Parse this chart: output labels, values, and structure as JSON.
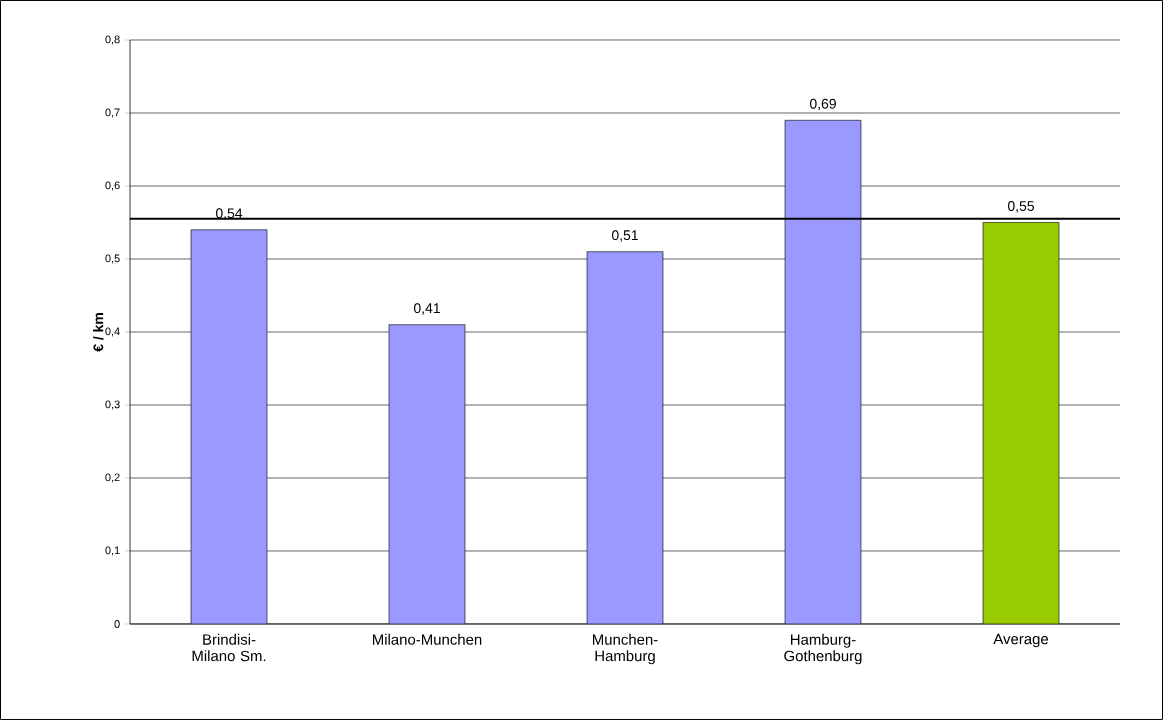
{
  "chart_data": {
    "type": "bar",
    "ylabel": "€ / km",
    "categories": [
      "Brindisi-Milano Sm.",
      "Milano-Munchen",
      "Munchen-Hamburg",
      "Hamburg-Gothenburg",
      "Average"
    ],
    "values": [
      0.54,
      0.41,
      0.51,
      0.69,
      0.55
    ],
    "colors": [
      "#9999ff",
      "#9999ff",
      "#9999ff",
      "#9999ff",
      "#99cc00"
    ],
    "value_labels": [
      "0,54",
      "0,41",
      "0,51",
      "0,69",
      "0,55"
    ],
    "ylim": [
      0,
      0.8
    ],
    "yticks": [
      0,
      {
        "value": 0.1,
        "label": "0,1"
      },
      {
        "value": 0.2,
        "label": "0,2"
      },
      {
        "value": 0.3,
        "label": "0,3"
      },
      {
        "value": 0.4,
        "label": "0,4"
      },
      {
        "value": 0.5,
        "label": "0,5"
      },
      {
        "value": 0.6,
        "label": "0,6"
      },
      {
        "value": 0.7,
        "label": "0,7"
      },
      {
        "value": 0.8,
        "label": "0,8"
      }
    ],
    "ref_lines": [
      {
        "axis": "y",
        "value": 0.555,
        "color": "#000000"
      }
    ],
    "grid": "y"
  }
}
